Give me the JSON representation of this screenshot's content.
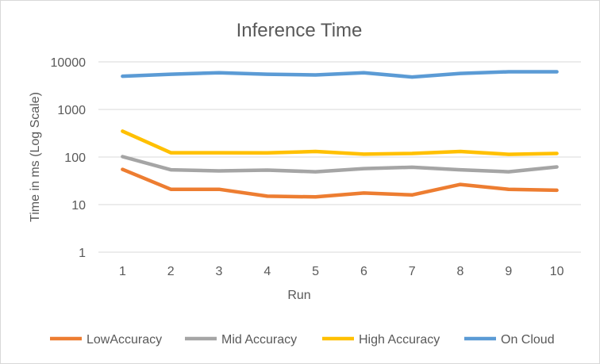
{
  "chart_data": {
    "type": "line",
    "title": "Inference Time",
    "xlabel": "Run",
    "ylabel": "Time in ms (Log Scale)",
    "y_scale": "log",
    "ylim": [
      1,
      10000
    ],
    "y_ticks": [
      "1",
      "10",
      "100",
      "1000",
      "10000"
    ],
    "grid": "horizontal",
    "legend_position": "bottom",
    "categories": [
      "1",
      "2",
      "3",
      "4",
      "5",
      "6",
      "7",
      "8",
      "9",
      "10"
    ],
    "series": [
      {
        "name": "LowAccuracy",
        "color": "#ed7d31",
        "values": [
          55,
          21,
          21,
          15,
          14.5,
          17.5,
          16,
          26.5,
          21,
          20
        ]
      },
      {
        "name": "Mid Accuracy",
        "color": "#a5a5a5",
        "values": [
          102,
          54,
          51,
          53,
          49,
          57,
          61,
          54,
          49,
          62
        ]
      },
      {
        "name": "High Accuracy",
        "color": "#ffc000",
        "values": [
          350,
          123,
          123,
          122,
          131,
          115,
          119,
          131,
          114,
          119
        ]
      },
      {
        "name": "On Cloud",
        "color": "#5b9bd5",
        "values": [
          5000,
          5500,
          5900,
          5500,
          5300,
          5900,
          4800,
          5700,
          6200,
          6200
        ]
      }
    ]
  }
}
